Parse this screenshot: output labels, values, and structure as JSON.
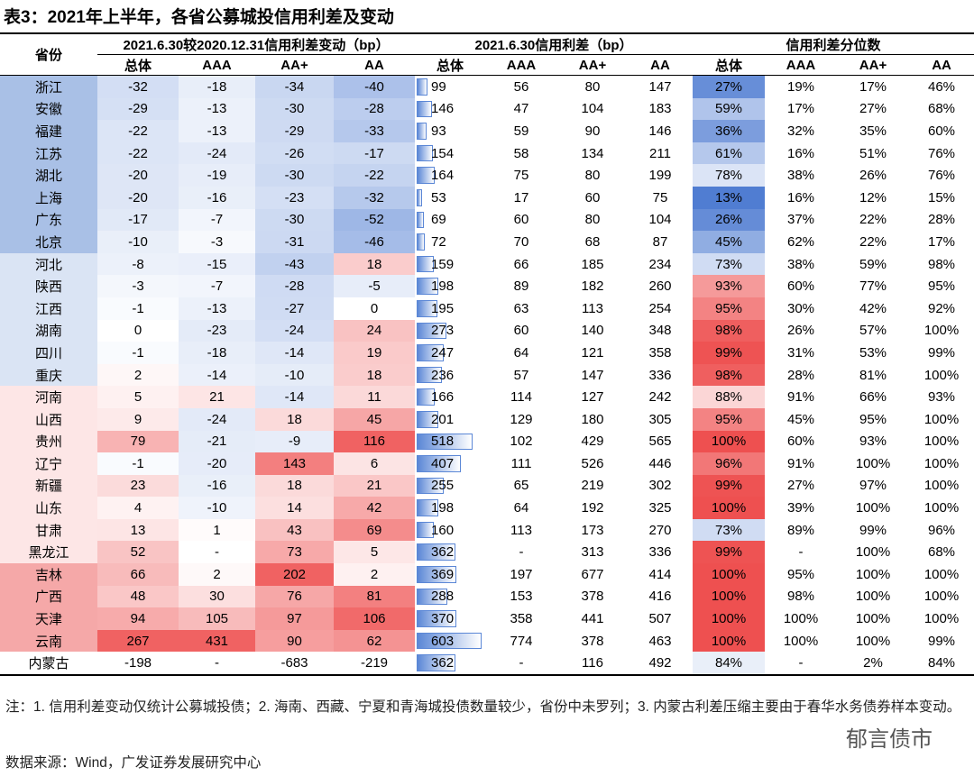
{
  "title": "表3：2021年上半年，各省公募城投信用利差及变动",
  "header": {
    "province": "省份",
    "groups": [
      "2021.6.30较2020.12.31信用利差变动（bp）",
      "2021.6.30信用利差（bp）",
      "信用利差分位数"
    ],
    "sub": [
      "总体",
      "AAA",
      "AA+",
      "AA",
      "总体",
      "AAA",
      "AA+",
      "AA",
      "总体",
      "AAA",
      "AA+",
      "AA"
    ]
  },
  "table": {
    "rows": [
      [
        "浙江",
        -32,
        -18,
        -34,
        -40,
        99,
        56,
        80,
        147,
        "27%",
        "19%",
        "17%",
        "46%"
      ],
      [
        "安徽",
        -29,
        -13,
        -30,
        -28,
        146,
        47,
        104,
        183,
        "59%",
        "17%",
        "27%",
        "68%"
      ],
      [
        "福建",
        -22,
        -13,
        -29,
        -33,
        93,
        59,
        90,
        146,
        "36%",
        "32%",
        "35%",
        "60%"
      ],
      [
        "江苏",
        -22,
        -24,
        -26,
        -17,
        154,
        58,
        134,
        211,
        "61%",
        "16%",
        "51%",
        "76%"
      ],
      [
        "湖北",
        -20,
        -19,
        -30,
        -22,
        164,
        75,
        80,
        199,
        "78%",
        "38%",
        "26%",
        "76%"
      ],
      [
        "上海",
        -20,
        -16,
        -23,
        -32,
        53,
        17,
        60,
        75,
        "13%",
        "16%",
        "12%",
        "15%"
      ],
      [
        "广东",
        -17,
        -7,
        -30,
        -52,
        69,
        60,
        80,
        104,
        "26%",
        "37%",
        "22%",
        "28%"
      ],
      [
        "北京",
        -10,
        -3,
        -31,
        -46,
        72,
        70,
        68,
        87,
        "45%",
        "62%",
        "22%",
        "17%"
      ],
      [
        "河北",
        -8,
        -15,
        -43,
        18,
        159,
        66,
        185,
        234,
        "73%",
        "38%",
        "59%",
        "98%"
      ],
      [
        "陕西",
        -3,
        -7,
        -28,
        -5,
        198,
        89,
        182,
        260,
        "93%",
        "60%",
        "77%",
        "95%"
      ],
      [
        "江西",
        -1,
        -13,
        -27,
        0,
        195,
        63,
        113,
        254,
        "95%",
        "30%",
        "42%",
        "92%"
      ],
      [
        "湖南",
        0,
        -23,
        -24,
        24,
        273,
        60,
        140,
        348,
        "98%",
        "26%",
        "57%",
        "100%"
      ],
      [
        "四川",
        -1,
        -18,
        -14,
        19,
        247,
        64,
        121,
        358,
        "99%",
        "31%",
        "53%",
        "99%"
      ],
      [
        "重庆",
        2,
        -14,
        -10,
        18,
        236,
        57,
        147,
        336,
        "98%",
        "28%",
        "81%",
        "100%"
      ],
      [
        "河南",
        5,
        21,
        -14,
        11,
        166,
        114,
        127,
        242,
        "88%",
        "91%",
        "66%",
        "93%"
      ],
      [
        "山西",
        9,
        -24,
        18,
        45,
        201,
        129,
        180,
        305,
        "95%",
        "45%",
        "95%",
        "100%"
      ],
      [
        "贵州",
        79,
        -21,
        -9,
        116,
        518,
        102,
        429,
        565,
        "100%",
        "60%",
        "93%",
        "100%"
      ],
      [
        "辽宁",
        -1,
        -20,
        143,
        6,
        407,
        111,
        526,
        446,
        "96%",
        "91%",
        "100%",
        "100%"
      ],
      [
        "新疆",
        23,
        -16,
        18,
        21,
        255,
        65,
        219,
        302,
        "99%",
        "27%",
        "97%",
        "100%"
      ],
      [
        "山东",
        4,
        -10,
        14,
        42,
        198,
        64,
        192,
        325,
        "100%",
        "39%",
        "100%",
        "100%"
      ],
      [
        "甘肃",
        13,
        1,
        43,
        69,
        160,
        113,
        173,
        270,
        "73%",
        "89%",
        "99%",
        "96%"
      ],
      [
        "黑龙江",
        52,
        "-",
        73,
        5,
        362,
        "-",
        313,
        336,
        "99%",
        "-",
        "100%",
        "68%"
      ],
      [
        "吉林",
        66,
        2,
        202,
        2,
        369,
        197,
        677,
        414,
        "100%",
        "95%",
        "100%",
        "100%"
      ],
      [
        "广西",
        48,
        30,
        76,
        81,
        288,
        153,
        378,
        416,
        "100%",
        "98%",
        "100%",
        "100%"
      ],
      [
        "天津",
        94,
        105,
        97,
        106,
        370,
        358,
        441,
        507,
        "100%",
        "100%",
        "100%",
        "100%"
      ],
      [
        "云南",
        267,
        431,
        90,
        62,
        603,
        774,
        378,
        463,
        "100%",
        "100%",
        "100%",
        "99%"
      ],
      [
        "内蒙古",
        -198,
        "-",
        -683,
        -219,
        362,
        "-",
        116,
        492,
        "84%",
        "-",
        "2%",
        "84%"
      ]
    ]
  },
  "notes": "注：1. 信用利差变动仅统计公募城投债；2. 海南、西藏、宁夏和青海城投债数量较少，省份中未罗列；3. 内蒙古利差压缩主要由于春华水务债券样本变动。",
  "source": "数据来源：Wind，广发证券发展研究中心",
  "watermark": "郁言债市"
}
